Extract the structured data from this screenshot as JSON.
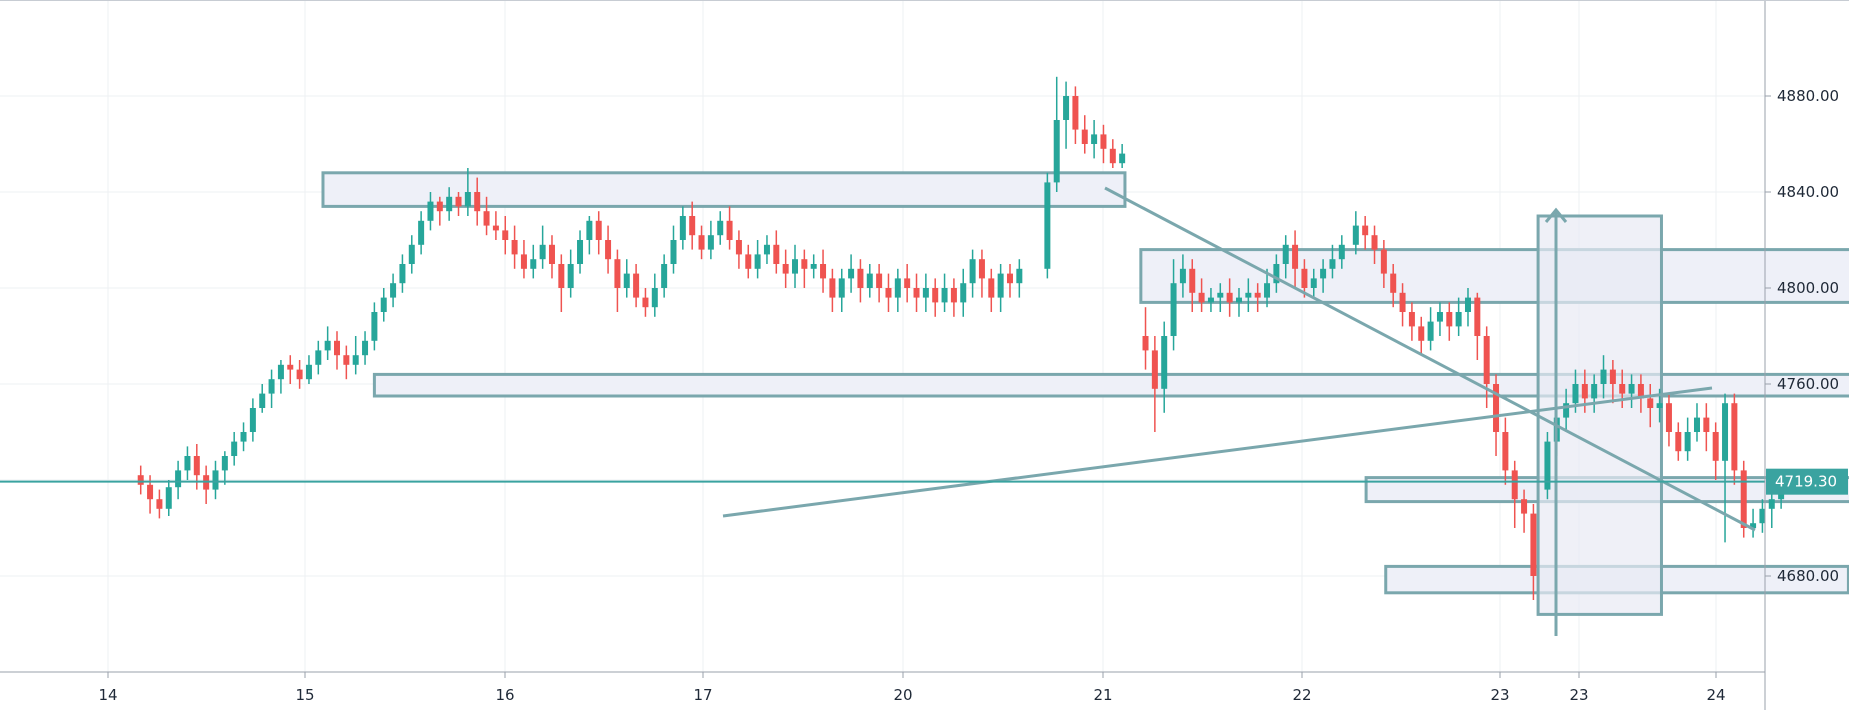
{
  "chart_data": {
    "type": "candlestick",
    "title": "",
    "xlabel": "",
    "ylabel": "",
    "x_ticks": [
      "14",
      "15",
      "16",
      "17",
      "20",
      "21",
      "22",
      "23",
      "23",
      "24"
    ],
    "y_ticks": [
      "4680.00",
      "4720.00",
      "4760.00",
      "4800.00",
      "4840.00",
      "4880.00"
    ],
    "y_tick_labels": [
      "4680.00",
      "4760.00",
      "4800.00",
      "4840.00",
      "4880.00"
    ],
    "ylim": [
      4640,
      4920
    ],
    "last_price": "4719.30",
    "grid": true,
    "colors": {
      "up": "#26a69a",
      "down": "#ef5350",
      "drawing": "#7aa7ad",
      "zone_fill": "#eef0f8",
      "last_price_line": "#3aa3a0"
    },
    "candles": [
      [
        0.35,
        4722,
        4718,
        4726,
        4714
      ],
      [
        0.45,
        4718,
        4712,
        4722,
        4706
      ],
      [
        0.55,
        4712,
        4708,
        4716,
        4704
      ],
      [
        0.65,
        4708,
        4717,
        4720,
        4705
      ],
      [
        0.75,
        4717,
        4724,
        4728,
        4712
      ],
      [
        0.85,
        4724,
        4730,
        4734,
        4720
      ],
      [
        0.95,
        4730,
        4722,
        4735,
        4716
      ],
      [
        1.05,
        4722,
        4716,
        4726,
        4710
      ],
      [
        1.15,
        4716,
        4724,
        4728,
        4712
      ],
      [
        1.25,
        4724,
        4730,
        4732,
        4718
      ],
      [
        1.35,
        4730,
        4736,
        4740,
        4726
      ],
      [
        1.45,
        4736,
        4740,
        4744,
        4732
      ],
      [
        1.55,
        4740,
        4750,
        4754,
        4736
      ],
      [
        1.65,
        4750,
        4756,
        4760,
        4748
      ],
      [
        1.75,
        4756,
        4762,
        4766,
        4750
      ],
      [
        1.85,
        4762,
        4768,
        4770,
        4756
      ],
      [
        1.95,
        4768,
        4766,
        4772,
        4760
      ],
      [
        2.05,
        4766,
        4762,
        4770,
        4758
      ],
      [
        2.15,
        4762,
        4768,
        4772,
        4760
      ],
      [
        2.25,
        4768,
        4774,
        4778,
        4764
      ],
      [
        2.35,
        4774,
        4778,
        4784,
        4770
      ],
      [
        2.45,
        4778,
        4772,
        4782,
        4766
      ],
      [
        2.55,
        4772,
        4768,
        4776,
        4762
      ],
      [
        2.65,
        4768,
        4772,
        4780,
        4764
      ],
      [
        2.75,
        4772,
        4778,
        4782,
        4768
      ],
      [
        2.85,
        4778,
        4790,
        4794,
        4774
      ],
      [
        2.95,
        4790,
        4796,
        4800,
        4786
      ],
      [
        3.05,
        4796,
        4802,
        4806,
        4792
      ],
      [
        3.15,
        4802,
        4810,
        4814,
        4798
      ],
      [
        3.25,
        4810,
        4818,
        4822,
        4806
      ],
      [
        3.35,
        4818,
        4828,
        4832,
        4814
      ],
      [
        3.45,
        4828,
        4836,
        4840,
        4824
      ],
      [
        3.55,
        4836,
        4832,
        4838,
        4826
      ],
      [
        3.65,
        4832,
        4838,
        4842,
        4828
      ],
      [
        3.75,
        4838,
        4834,
        4840,
        4830
      ],
      [
        3.85,
        4834,
        4840,
        4850,
        4830
      ],
      [
        3.95,
        4840,
        4832,
        4846,
        4826
      ],
      [
        4.05,
        4832,
        4826,
        4838,
        4822
      ],
      [
        4.15,
        4826,
        4824,
        4832,
        4820
      ],
      [
        4.25,
        4824,
        4820,
        4830,
        4814
      ],
      [
        4.35,
        4820,
        4814,
        4826,
        4808
      ],
      [
        4.45,
        4814,
        4808,
        4820,
        4804
      ],
      [
        4.55,
        4808,
        4812,
        4818,
        4804
      ],
      [
        4.65,
        4812,
        4818,
        4826,
        4808
      ],
      [
        4.75,
        4818,
        4810,
        4822,
        4804
      ],
      [
        4.85,
        4810,
        4800,
        4814,
        4790
      ],
      [
        4.95,
        4800,
        4810,
        4816,
        4796
      ],
      [
        5.05,
        4810,
        4820,
        4824,
        4806
      ],
      [
        5.15,
        4820,
        4828,
        4830,
        4814
      ],
      [
        5.25,
        4828,
        4820,
        4832,
        4814
      ],
      [
        5.35,
        4820,
        4812,
        4826,
        4806
      ],
      [
        5.45,
        4812,
        4800,
        4816,
        4790
      ],
      [
        5.55,
        4800,
        4806,
        4812,
        4796
      ],
      [
        5.65,
        4806,
        4796,
        4810,
        4792
      ],
      [
        5.75,
        4796,
        4792,
        4800,
        4788
      ],
      [
        5.85,
        4792,
        4800,
        4806,
        4788
      ],
      [
        5.95,
        4800,
        4810,
        4814,
        4796
      ],
      [
        6.05,
        4810,
        4820,
        4826,
        4806
      ],
      [
        6.15,
        4820,
        4830,
        4834,
        4816
      ],
      [
        6.25,
        4830,
        4822,
        4836,
        4816
      ],
      [
        6.35,
        4822,
        4816,
        4826,
        4812
      ],
      [
        6.45,
        4816,
        4822,
        4828,
        4812
      ],
      [
        6.55,
        4822,
        4828,
        4832,
        4818
      ],
      [
        6.65,
        4828,
        4820,
        4834,
        4816
      ],
      [
        6.75,
        4820,
        4814,
        4824,
        4808
      ],
      [
        6.85,
        4814,
        4808,
        4818,
        4804
      ],
      [
        6.95,
        4808,
        4814,
        4820,
        4804
      ],
      [
        7.05,
        4814,
        4818,
        4822,
        4810
      ],
      [
        7.15,
        4818,
        4810,
        4824,
        4806
      ],
      [
        7.25,
        4810,
        4806,
        4816,
        4800
      ],
      [
        7.35,
        4806,
        4812,
        4818,
        4800
      ],
      [
        7.45,
        4812,
        4808,
        4816,
        4800
      ],
      [
        7.55,
        4808,
        4810,
        4814,
        4804
      ],
      [
        7.65,
        4810,
        4804,
        4816,
        4798
      ],
      [
        7.75,
        4804,
        4796,
        4808,
        4790
      ],
      [
        7.85,
        4796,
        4804,
        4808,
        4790
      ],
      [
        7.95,
        4804,
        4808,
        4814,
        4798
      ],
      [
        8.05,
        4808,
        4800,
        4812,
        4794
      ],
      [
        8.15,
        4800,
        4806,
        4810,
        4796
      ],
      [
        8.25,
        4806,
        4800,
        4810,
        4794
      ],
      [
        8.35,
        4800,
        4796,
        4806,
        4790
      ],
      [
        8.45,
        4796,
        4804,
        4808,
        4790
      ],
      [
        8.55,
        4804,
        4800,
        4810,
        4794
      ],
      [
        8.65,
        4800,
        4796,
        4806,
        4790
      ],
      [
        8.75,
        4796,
        4800,
        4806,
        4790
      ],
      [
        8.85,
        4800,
        4794,
        4804,
        4788
      ],
      [
        8.95,
        4794,
        4800,
        4806,
        4790
      ],
      [
        9.05,
        4800,
        4794,
        4804,
        4788
      ],
      [
        9.15,
        4794,
        4802,
        4808,
        4788
      ],
      [
        9.25,
        4802,
        4812,
        4816,
        4796
      ],
      [
        9.35,
        4812,
        4804,
        4816,
        4796
      ],
      [
        9.45,
        4804,
        4796,
        4808,
        4790
      ],
      [
        9.55,
        4796,
        4806,
        4810,
        4790
      ],
      [
        9.65,
        4806,
        4802,
        4810,
        4796
      ],
      [
        9.75,
        4802,
        4808,
        4812,
        4796
      ],
      [
        10.05,
        4808,
        4844,
        4848,
        4804
      ],
      [
        10.15,
        4844,
        4870,
        4888,
        4840
      ],
      [
        10.25,
        4870,
        4880,
        4886,
        4858
      ],
      [
        10.35,
        4880,
        4866,
        4884,
        4860
      ],
      [
        10.45,
        4866,
        4860,
        4872,
        4856
      ],
      [
        10.55,
        4860,
        4864,
        4870,
        4854
      ],
      [
        10.65,
        4864,
        4858,
        4868,
        4852
      ],
      [
        10.75,
        4858,
        4852,
        4862,
        4850
      ],
      [
        10.85,
        4852,
        4856,
        4860,
        4850
      ],
      [
        11.1,
        4780,
        4774,
        4792,
        4766
      ],
      [
        11.2,
        4774,
        4758,
        4780,
        4740
      ],
      [
        11.3,
        4758,
        4780,
        4786,
        4748
      ],
      [
        11.4,
        4780,
        4802,
        4812,
        4774
      ],
      [
        11.5,
        4802,
        4808,
        4814,
        4796
      ],
      [
        11.6,
        4808,
        4798,
        4812,
        4790
      ],
      [
        11.7,
        4798,
        4794,
        4804,
        4790
      ],
      [
        11.8,
        4794,
        4796,
        4800,
        4790
      ],
      [
        11.9,
        4796,
        4798,
        4802,
        4790
      ],
      [
        12.0,
        4798,
        4794,
        4804,
        4788
      ],
      [
        12.1,
        4794,
        4796,
        4800,
        4788
      ],
      [
        12.2,
        4796,
        4798,
        4804,
        4790
      ],
      [
        12.3,
        4798,
        4796,
        4802,
        4790
      ],
      [
        12.4,
        4796,
        4802,
        4808,
        4792
      ],
      [
        12.5,
        4802,
        4810,
        4814,
        4798
      ],
      [
        12.6,
        4810,
        4818,
        4822,
        4804
      ],
      [
        12.7,
        4818,
        4808,
        4824,
        4800
      ],
      [
        12.8,
        4808,
        4800,
        4812,
        4796
      ],
      [
        12.9,
        4800,
        4804,
        4808,
        4796
      ],
      [
        13.0,
        4804,
        4808,
        4812,
        4798
      ],
      [
        13.1,
        4808,
        4812,
        4818,
        4804
      ],
      [
        13.2,
        4812,
        4818,
        4822,
        4808
      ],
      [
        13.35,
        4818,
        4826,
        4832,
        4814
      ],
      [
        13.45,
        4826,
        4822,
        4830,
        4816
      ],
      [
        13.55,
        4822,
        4816,
        4826,
        4810
      ],
      [
        13.65,
        4816,
        4806,
        4820,
        4800
      ],
      [
        13.75,
        4806,
        4798,
        4810,
        4792
      ],
      [
        13.85,
        4798,
        4790,
        4802,
        4784
      ],
      [
        13.95,
        4790,
        4784,
        4794,
        4778
      ],
      [
        14.05,
        4784,
        4778,
        4788,
        4772
      ],
      [
        14.15,
        4778,
        4786,
        4792,
        4774
      ],
      [
        14.25,
        4786,
        4790,
        4794,
        4780
      ],
      [
        14.35,
        4790,
        4784,
        4794,
        4778
      ],
      [
        14.45,
        4784,
        4790,
        4796,
        4780
      ],
      [
        14.55,
        4790,
        4796,
        4800,
        4784
      ],
      [
        14.65,
        4796,
        4780,
        4798,
        4770
      ],
      [
        14.75,
        4780,
        4760,
        4784,
        4750
      ],
      [
        14.85,
        4760,
        4740,
        4764,
        4730
      ],
      [
        14.95,
        4740,
        4724,
        4746,
        4718
      ],
      [
        15.05,
        4724,
        4712,
        4728,
        4700
      ],
      [
        15.15,
        4712,
        4706,
        4716,
        4698
      ],
      [
        15.25,
        4706,
        4680,
        4710,
        4670
      ],
      [
        15.4,
        4716,
        4736,
        4740,
        4712
      ],
      [
        15.5,
        4736,
        4746,
        4750,
        4730
      ],
      [
        15.6,
        4746,
        4752,
        4758,
        4740
      ],
      [
        15.7,
        4752,
        4760,
        4766,
        4748
      ],
      [
        15.8,
        4760,
        4754,
        4766,
        4748
      ],
      [
        15.9,
        4754,
        4760,
        4764,
        4748
      ],
      [
        16.0,
        4760,
        4766,
        4772,
        4754
      ],
      [
        16.1,
        4766,
        4760,
        4770,
        4752
      ],
      [
        16.2,
        4760,
        4756,
        4766,
        4750
      ],
      [
        16.3,
        4756,
        4760,
        4764,
        4750
      ],
      [
        16.4,
        4760,
        4754,
        4764,
        4748
      ],
      [
        16.5,
        4754,
        4750,
        4760,
        4742
      ],
      [
        16.6,
        4750,
        4752,
        4758,
        4744
      ],
      [
        16.7,
        4752,
        4740,
        4756,
        4734
      ],
      [
        16.8,
        4740,
        4732,
        4744,
        4728
      ],
      [
        16.9,
        4732,
        4740,
        4746,
        4728
      ],
      [
        17.0,
        4740,
        4746,
        4752,
        4736
      ],
      [
        17.1,
        4746,
        4740,
        4752,
        4732
      ],
      [
        17.2,
        4740,
        4728,
        4744,
        4720
      ],
      [
        17.3,
        4728,
        4752,
        4756,
        4694
      ],
      [
        17.4,
        4752,
        4724,
        4756,
        4718
      ],
      [
        17.5,
        4724,
        4700,
        4728,
        4696
      ],
      [
        17.6,
        4700,
        4702,
        4708,
        4696
      ],
      [
        17.7,
        4702,
        4708,
        4712,
        4698
      ],
      [
        17.8,
        4708,
        4712,
        4716,
        4700
      ],
      [
        17.9,
        4712,
        4716,
        4720,
        4708
      ]
    ]
  }
}
